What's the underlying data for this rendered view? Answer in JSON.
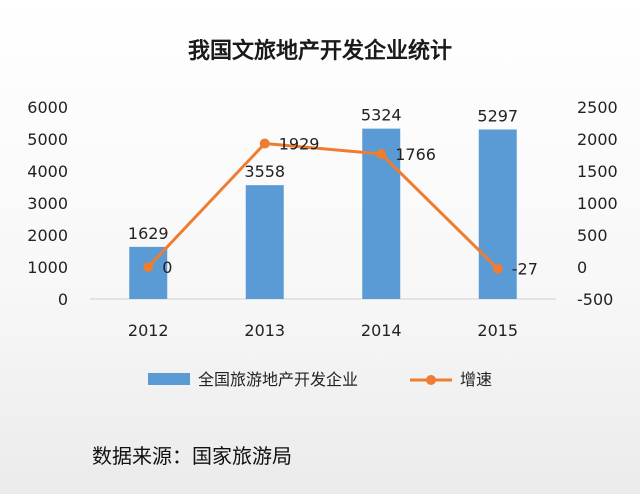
{
  "chart_data": {
    "type": "bar+line",
    "title": "我国文旅地产开发企业统计",
    "categories": [
      "2012",
      "2013",
      "2014",
      "2015"
    ],
    "series": [
      {
        "name": "全国旅游地产开发企业",
        "type": "bar",
        "axis": "left",
        "color": "#5b9bd5",
        "values": [
          1629,
          3558,
          5324,
          5297
        ],
        "labels": [
          "1629",
          "3558",
          "5324",
          "5297"
        ]
      },
      {
        "name": "增速",
        "type": "line",
        "axis": "right",
        "color": "#ed7d31",
        "values": [
          0,
          1929,
          1766,
          -27
        ],
        "labels": [
          "0",
          "1929",
          "1766",
          "-27"
        ]
      }
    ],
    "y_left": {
      "min": 0,
      "max": 6000,
      "ticks": [
        "0",
        "1000",
        "2000",
        "3000",
        "4000",
        "5000",
        "6000"
      ]
    },
    "y_right": {
      "min": -500,
      "max": 2500,
      "ticks": [
        "-500",
        "0",
        "500",
        "1000",
        "1500",
        "2000",
        "2500"
      ]
    },
    "grid": false,
    "legend": "bottom"
  },
  "source_label": "数据来源：国家旅游局"
}
